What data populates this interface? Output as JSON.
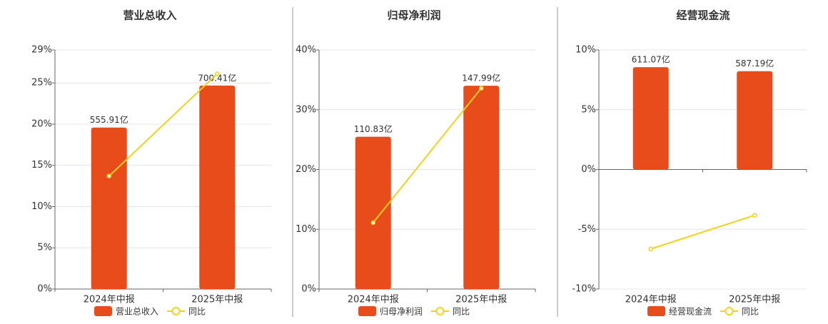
{
  "chart_data": [
    {
      "type": "bar-line",
      "title": "营业总收入",
      "categories": [
        "2024年中报",
        "2025年中报"
      ],
      "series": [
        {
          "name": "营业总收入",
          "color": "#e84c1a",
          "axis": "y2",
          "values": [
            555.91,
            700.41
          ],
          "value_labels": [
            "555.91亿",
            "700.41亿"
          ]
        },
        {
          "name": "同比",
          "color": "#f2d21a",
          "values": [
            13.7,
            26.1
          ]
        }
      ],
      "ylim": [
        0,
        29
      ],
      "yticks": [
        {
          "value": 0,
          "label": "0%"
        },
        {
          "value": 5,
          "label": "5%"
        },
        {
          "value": 10,
          "label": "10%"
        },
        {
          "value": 15,
          "label": "15%"
        },
        {
          "value": 20,
          "label": "20%"
        },
        {
          "value": 25,
          "label": "25%"
        },
        {
          "value": 29,
          "label": "29%"
        }
      ],
      "y2lim": [
        0,
        823
      ],
      "grid": true
    },
    {
      "type": "bar-line",
      "title": "归母净利润",
      "categories": [
        "2024年中报",
        "2025年中报"
      ],
      "series": [
        {
          "name": "归母净利润",
          "color": "#e84c1a",
          "axis": "y2",
          "values": [
            110.83,
            147.99
          ],
          "value_labels": [
            "110.83亿",
            "147.99亿"
          ]
        },
        {
          "name": "同比",
          "color": "#f2d21a",
          "values": [
            11.1,
            33.6
          ]
        }
      ],
      "ylim": [
        0,
        40
      ],
      "yticks": [
        {
          "value": 0,
          "label": "0%"
        },
        {
          "value": 10,
          "label": "10%"
        },
        {
          "value": 20,
          "label": "20%"
        },
        {
          "value": 30,
          "label": "30%"
        },
        {
          "value": 40,
          "label": "40%"
        }
      ],
      "y2lim": [
        0,
        174
      ],
      "grid": true
    },
    {
      "type": "bar-line",
      "title": "经营现金流",
      "categories": [
        "2024年中报",
        "2025年中报"
      ],
      "series": [
        {
          "name": "经营现金流",
          "color": "#e84c1a",
          "axis": "y2",
          "values": [
            611.07,
            587.19
          ],
          "value_labels": [
            "611.07亿",
            "587.19亿"
          ]
        },
        {
          "name": "同比",
          "color": "#f2d21a",
          "values": [
            -6.65,
            -3.83
          ]
        }
      ],
      "ylim": [
        -10,
        10
      ],
      "yticks": [
        {
          "value": -10,
          "label": "-10%"
        },
        {
          "value": -5,
          "label": "-5%"
        },
        {
          "value": 0,
          "label": "0%"
        },
        {
          "value": 5,
          "label": "5%"
        },
        {
          "value": 10,
          "label": "10%"
        }
      ],
      "y2lim": [
        -714,
        714
      ],
      "grid": true
    }
  ]
}
